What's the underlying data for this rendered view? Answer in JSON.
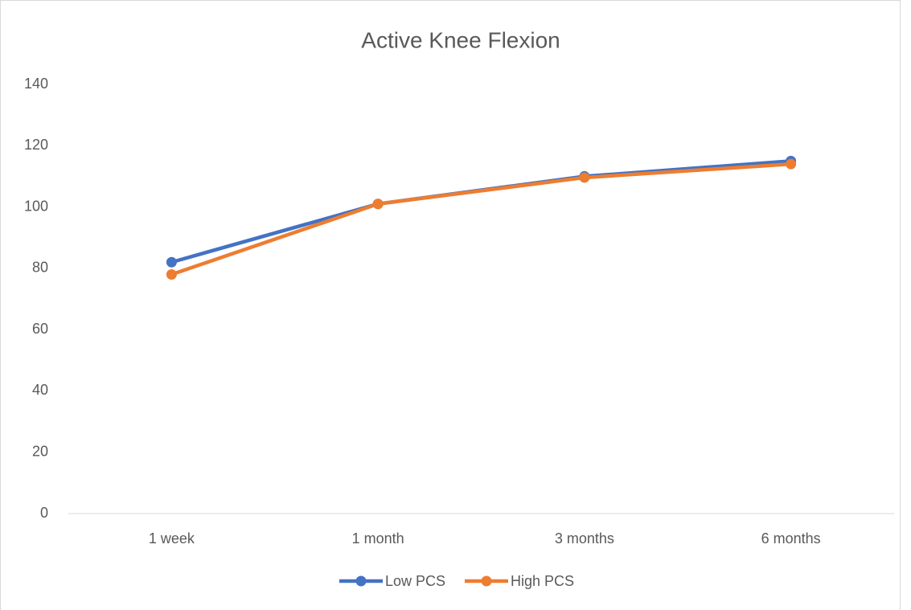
{
  "chart_data": {
    "type": "line",
    "title": "Active Knee Flexion",
    "categories": [
      "1 week",
      "1 month",
      "3 months",
      "6 months"
    ],
    "series": [
      {
        "name": "Low PCS",
        "color": "#4472c4",
        "values": [
          82,
          101,
          110,
          115
        ]
      },
      {
        "name": "High PCS",
        "color": "#ed7d31",
        "values": [
          78,
          101,
          109.6,
          114
        ]
      }
    ],
    "ylim": [
      0,
      140
    ],
    "yticks": [
      0,
      20,
      40,
      60,
      80,
      100,
      120,
      140
    ],
    "grid": false,
    "legend": "bottom"
  }
}
